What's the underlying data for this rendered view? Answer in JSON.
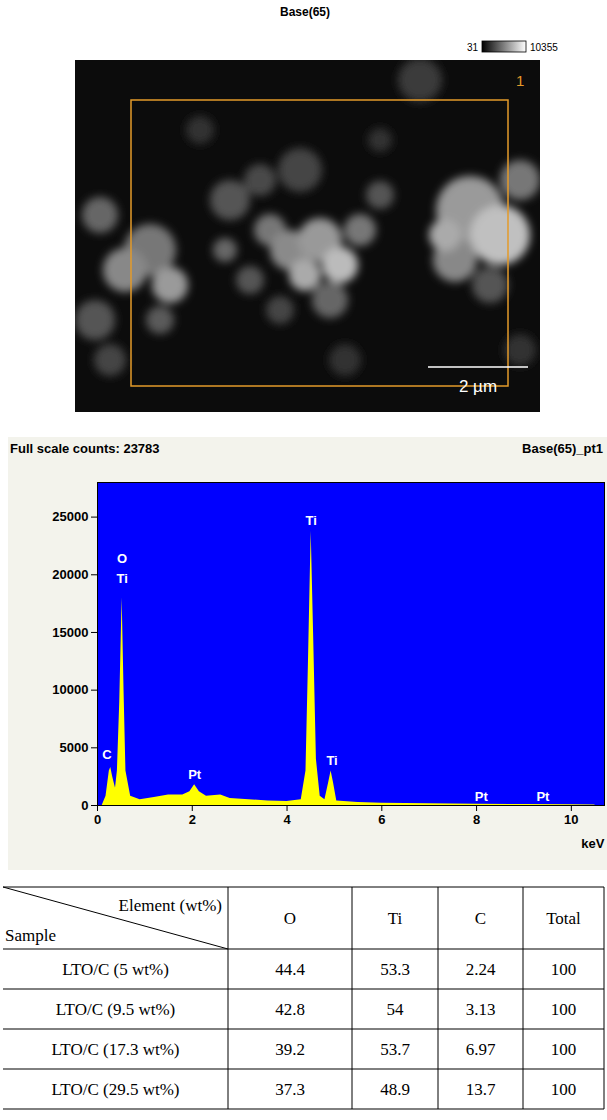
{
  "header": {
    "title": "Base(65)"
  },
  "image": {
    "colorbar_min": 31,
    "colorbar_max": 10355,
    "region_label": "1",
    "scale_bar": "2 µm"
  },
  "chart_data": {
    "type": "area",
    "title": "Base(65)_pt1",
    "subtitle": "Full scale counts: 23783",
    "x_label": "keV",
    "x": [
      0.1,
      0.18,
      0.25,
      0.28,
      0.32,
      0.38,
      0.42,
      0.47,
      0.52,
      0.56,
      0.6,
      0.7,
      0.9,
      1.2,
      1.5,
      1.8,
      1.95,
      2.05,
      2.15,
      2.3,
      2.6,
      2.8,
      3.2,
      3.6,
      4.0,
      4.3,
      4.4,
      4.45,
      4.51,
      4.56,
      4.62,
      4.7,
      4.8,
      4.88,
      4.93,
      4.98,
      5.05,
      5.5,
      6,
      7,
      8,
      9,
      10,
      10.5
    ],
    "values": [
      0,
      800,
      3000,
      3300,
      2500,
      1500,
      3000,
      9000,
      18000,
      10000,
      3000,
      800,
      500,
      700,
      900,
      900,
      1200,
      1800,
      1200,
      800,
      900,
      600,
      500,
      400,
      350,
      500,
      3000,
      12000,
      23783,
      15000,
      4000,
      800,
      500,
      2000,
      3000,
      2000,
      400,
      250,
      200,
      150,
      100,
      80,
      60,
      50
    ],
    "color": "#ffff00",
    "xlim": [
      0,
      10.7
    ],
    "ylim": [
      0,
      28000
    ],
    "xticks": [
      0,
      2,
      4,
      6,
      8,
      10
    ],
    "yticks": [
      0,
      5000,
      10000,
      15000,
      20000,
      25000
    ],
    "annotations": [
      {
        "text": "C",
        "x": 0.2,
        "y": 4000
      },
      {
        "text": "Ti",
        "x": 0.52,
        "y": 19300
      },
      {
        "text": "O",
        "x": 0.52,
        "y": 21000
      },
      {
        "text": "Pt",
        "x": 2.05,
        "y": 2300
      },
      {
        "text": "Ti",
        "x": 4.51,
        "y": 24300
      },
      {
        "text": "Ti",
        "x": 4.95,
        "y": 3500
      },
      {
        "text": "Pt",
        "x": 8.1,
        "y": 400
      },
      {
        "text": "Pt",
        "x": 9.4,
        "y": 400
      }
    ]
  },
  "table": {
    "corner": {
      "column_head": "Element (wt%)",
      "row_head": "Sample"
    },
    "columns": [
      "O",
      "Ti",
      "C",
      "Total"
    ],
    "rows": [
      {
        "sample": "LTO/C (5 wt%)",
        "values": [
          44.4,
          53.3,
          2.24,
          100
        ]
      },
      {
        "sample": "LTO/C (9.5 wt%)",
        "values": [
          42.8,
          54.0,
          3.13,
          100
        ]
      },
      {
        "sample": "LTO/C (17.3 wt%)",
        "values": [
          39.2,
          53.7,
          6.97,
          100
        ]
      },
      {
        "sample": "LTO/C (29.5 wt%)",
        "values": [
          37.3,
          48.9,
          13.7,
          100
        ]
      }
    ]
  }
}
